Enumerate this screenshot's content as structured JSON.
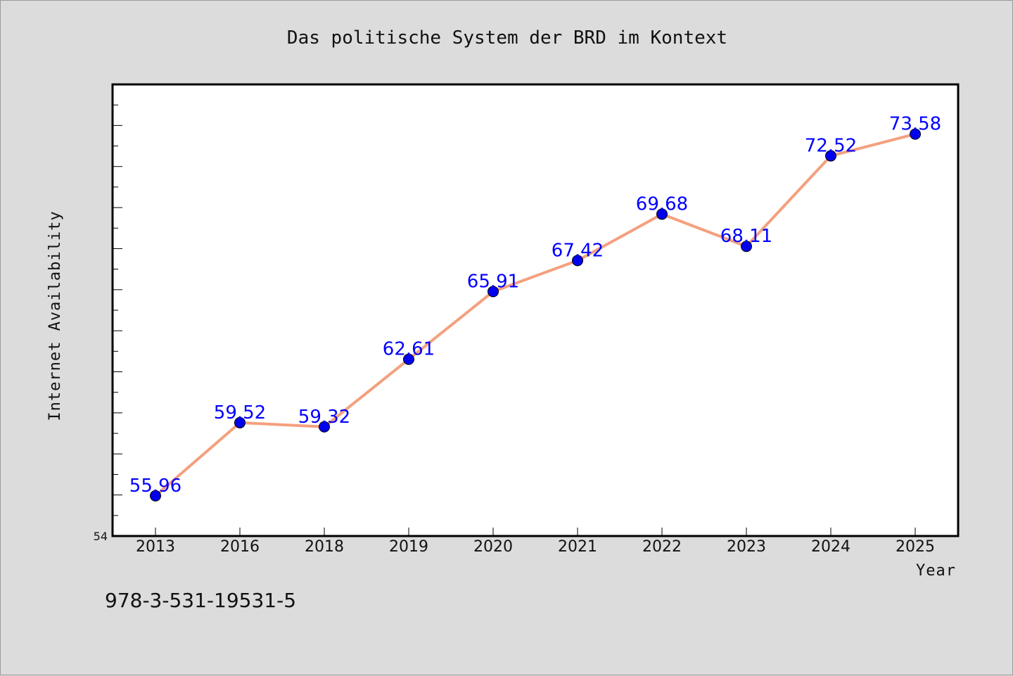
{
  "chart_data": {
    "type": "line",
    "title": "Das politische System der BRD im Kontext",
    "xlabel": "Year",
    "ylabel": "Internet Availability",
    "categories": [
      "2013",
      "2016",
      "2018",
      "2019",
      "2020",
      "2021",
      "2022",
      "2023",
      "2024",
      "2025"
    ],
    "values": [
      55.96,
      59.52,
      59.32,
      62.61,
      65.91,
      67.42,
      69.68,
      68.11,
      72.52,
      73.58
    ],
    "data_labels": [
      "55.96",
      "59.52",
      "59.32",
      "62.61",
      "65.91",
      "67.42",
      "69.68",
      "68.11",
      "72.52",
      "73.58"
    ],
    "ylim": [
      54,
      76
    ],
    "y_tick_labels": [
      "54"
    ],
    "grid": false,
    "legend": "none",
    "colors": {
      "line": "#f4a07e",
      "marker": "#0000ee",
      "data_label": "#0000ff",
      "plot_background": "#ffffff",
      "figure_background": "#dcdcdc"
    }
  },
  "footer": {
    "isbn": "978-3-531-19531-5"
  }
}
